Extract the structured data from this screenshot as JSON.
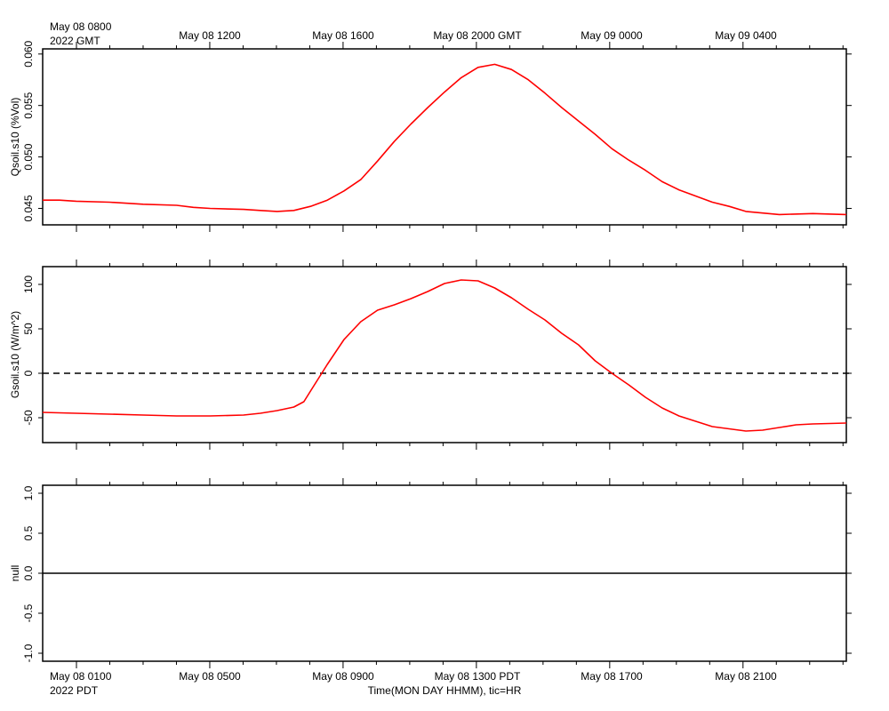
{
  "figure": {
    "top_time_labels": {
      "first_line1": "May 08 0800",
      "first_line2": "2022 GMT",
      "ticks": [
        "May 08 1200",
        "May 08 1600",
        "May 08 2000 GMT",
        "May 09 0000",
        "May 09 0400"
      ]
    },
    "bottom_time_labels": {
      "first_line1": "May 08 0100",
      "first_line2": "2022 PDT",
      "ticks": [
        "May 08 0500",
        "May 08 0900",
        "May 08 1300 PDT",
        "May 08 1700",
        "May 08 2100"
      ]
    },
    "xlabel": "Time(MON DAY HHMM), tic=HR",
    "colors": {
      "series": "#ff0000",
      "axes": "#000000",
      "zero_line": "#000000"
    }
  },
  "chart_data": [
    {
      "type": "line",
      "ylabel": "Qsoil.s10 (%Vol)",
      "ylim": [
        0.0434,
        0.0605
      ],
      "yticks": [
        0.045,
        0.05,
        0.055,
        0.06
      ],
      "ytick_labels": [
        "0.045",
        "0.050",
        "0.055",
        "0.060"
      ],
      "xlim": [
        0,
        24
      ],
      "grid": false,
      "series": [
        {
          "x": [
            0,
            0.5,
            1,
            2,
            3,
            4,
            4.5,
            5,
            6,
            6.5,
            7,
            7.5,
            8,
            8.5,
            9,
            9.5,
            10,
            10.5,
            11,
            11.5,
            12,
            12.5,
            13,
            13.5,
            14,
            14.5,
            15,
            15.5,
            16,
            16.5,
            17,
            17.5,
            18,
            18.5,
            19,
            20,
            20.5,
            21,
            22,
            23,
            24
          ],
          "y": [
            0.0458,
            0.0458,
            0.0457,
            0.0456,
            0.0454,
            0.0453,
            0.0451,
            0.045,
            0.0449,
            0.0448,
            0.0447,
            0.0448,
            0.0452,
            0.0458,
            0.0467,
            0.0478,
            0.0496,
            0.0515,
            0.0532,
            0.0548,
            0.0563,
            0.0577,
            0.0587,
            0.059,
            0.0585,
            0.0575,
            0.0562,
            0.0548,
            0.0535,
            0.0522,
            0.0508,
            0.0497,
            0.0487,
            0.0476,
            0.0468,
            0.0456,
            0.0452,
            0.0447,
            0.0444,
            0.0445,
            0.0444
          ]
        }
      ]
    },
    {
      "type": "line",
      "ylabel": "Gsoil.s10 (W/m^2)",
      "ylim": [
        -78,
        120
      ],
      "yticks": [
        -50,
        0,
        50,
        100
      ],
      "ytick_labels": [
        "-50",
        "0",
        "50",
        "100"
      ],
      "xlim": [
        0,
        24
      ],
      "grid": false,
      "reference_line": 0,
      "series": [
        {
          "x": [
            0,
            1,
            2,
            3,
            4,
            5,
            6,
            6.5,
            7,
            7.5,
            7.8,
            8,
            8.5,
            9,
            9.5,
            10,
            10.5,
            11,
            11.5,
            12,
            12.5,
            13,
            13.5,
            14,
            14.5,
            15,
            15.5,
            16,
            16.5,
            17,
            17.5,
            18,
            18.5,
            19,
            20,
            21,
            21.5,
            22,
            22.5,
            23,
            24
          ],
          "y": [
            -44,
            -45,
            -46,
            -47,
            -48,
            -48,
            -47,
            -45,
            -42,
            -38,
            -32,
            -20,
            10,
            38,
            58,
            71,
            77,
            84,
            92,
            101,
            105,
            104,
            96,
            85,
            72,
            60,
            45,
            32,
            14,
            0,
            -13,
            -27,
            -39,
            -48,
            -60,
            -65,
            -64,
            -61,
            -58,
            -57,
            -56
          ]
        }
      ]
    },
    {
      "type": "line",
      "ylabel": "null",
      "ylim": [
        -1.1,
        1.1
      ],
      "yticks": [
        -1.0,
        -0.5,
        0.0,
        0.5,
        1.0
      ],
      "ytick_labels": [
        "-1.0",
        "-0.5",
        "0.0",
        "0.5",
        "1.0"
      ],
      "xlim": [
        0,
        24
      ],
      "grid": false,
      "series": [
        {
          "x": [
            0,
            24
          ],
          "y": [
            0,
            0
          ]
        }
      ]
    }
  ]
}
